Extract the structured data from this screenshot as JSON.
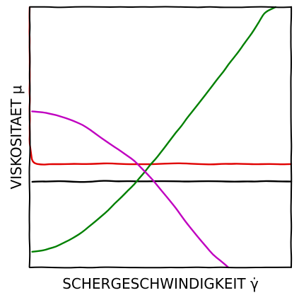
{
  "chart_data": {
    "type": "line",
    "style": "hand-drawn (xkcd)",
    "xlabel": "SCHERGESCHWINDIGKEIT γ̇",
    "ylabel": "VISKOSITAET μ",
    "xlim": [
      0,
      1
    ],
    "ylim": [
      0,
      1
    ],
    "ticks": "none",
    "grid": false,
    "legend": "none",
    "series": [
      {
        "color": "#e00000",
        "x": [
          0.0,
          0.0,
          0.01,
          0.05,
          0.1,
          0.2,
          0.3,
          0.4,
          0.5,
          0.6,
          0.7,
          0.8,
          0.9,
          1.0
        ],
        "y": [
          1.0,
          0.48,
          0.4,
          0.395,
          0.398,
          0.397,
          0.399,
          0.396,
          0.398,
          0.4,
          0.396,
          0.398,
          0.397,
          0.397
        ]
      },
      {
        "color": "#000000",
        "x": [
          0.01,
          0.1,
          0.2,
          0.3,
          0.4,
          0.5,
          0.6,
          0.7,
          0.8,
          0.9,
          1.0
        ],
        "y": [
          0.33,
          0.331,
          0.329,
          0.332,
          0.33,
          0.331,
          0.329,
          0.332,
          0.33,
          0.331,
          0.33
        ]
      },
      {
        "color": "#008000",
        "x": [
          0.01,
          0.05,
          0.1,
          0.15,
          0.2,
          0.3,
          0.4,
          0.5,
          0.6,
          0.7,
          0.8,
          0.85,
          0.9,
          0.94
        ],
        "y": [
          0.06,
          0.065,
          0.08,
          0.105,
          0.135,
          0.22,
          0.32,
          0.44,
          0.57,
          0.7,
          0.83,
          0.9,
          0.98,
          1.0
        ]
      },
      {
        "color": "#c000c0",
        "x": [
          0.01,
          0.05,
          0.1,
          0.15,
          0.2,
          0.3,
          0.4,
          0.45,
          0.5,
          0.55,
          0.6,
          0.65,
          0.7,
          0.76
        ],
        "y": [
          0.6,
          0.595,
          0.585,
          0.57,
          0.55,
          0.48,
          0.41,
          0.36,
          0.3,
          0.24,
          0.17,
          0.11,
          0.05,
          0.0
        ]
      }
    ]
  }
}
